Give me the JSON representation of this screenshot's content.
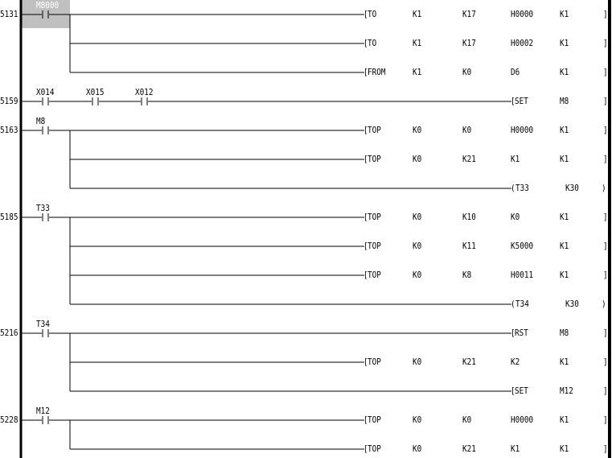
{
  "colors": {
    "line": "#000000",
    "highlight": "#c0c0c0",
    "highlight_text": "#ffffff"
  },
  "rungs": [
    {
      "step": "5131",
      "row": 0,
      "contacts": [
        {
          "label": "M8000",
          "selected": true
        }
      ],
      "outputs": [
        {
          "row": 0,
          "type": "apply",
          "op": "TO",
          "args": [
            "K1",
            "K17",
            "H0000",
            "K1"
          ]
        },
        {
          "row": 1,
          "type": "apply",
          "op": "TO",
          "args": [
            "K1",
            "K17",
            "H0002",
            "K1"
          ]
        },
        {
          "row": 2,
          "type": "apply",
          "op": "FROM",
          "args": [
            "K1",
            "K0",
            "D6",
            "K1"
          ]
        }
      ]
    },
    {
      "step": "5159",
      "row": 3,
      "contacts": [
        {
          "label": "X014"
        },
        {
          "label": "X015"
        },
        {
          "label": "X012"
        }
      ],
      "outputs": [
        {
          "row": 3,
          "type": "set",
          "op": "SET",
          "args": [
            "M8"
          ]
        }
      ]
    },
    {
      "step": "5163",
      "row": 4,
      "contacts": [
        {
          "label": "M8"
        }
      ],
      "outputs": [
        {
          "row": 4,
          "type": "apply",
          "op": "TOP",
          "args": [
            "K0",
            "K0",
            "H0000",
            "K1"
          ]
        },
        {
          "row": 5,
          "type": "apply",
          "op": "TOP",
          "args": [
            "K0",
            "K21",
            "K1",
            "K1"
          ]
        },
        {
          "row": 6,
          "type": "coil",
          "op": "T33",
          "args": [
            "K30"
          ]
        }
      ]
    },
    {
      "step": "5185",
      "row": 7,
      "contacts": [
        {
          "label": "T33"
        }
      ],
      "outputs": [
        {
          "row": 7,
          "type": "apply",
          "op": "TOP",
          "args": [
            "K0",
            "K10",
            "K0",
            "K1"
          ]
        },
        {
          "row": 8,
          "type": "apply",
          "op": "TOP",
          "args": [
            "K0",
            "K11",
            "K5000",
            "K1"
          ]
        },
        {
          "row": 9,
          "type": "apply",
          "op": "TOP",
          "args": [
            "K0",
            "K8",
            "H0011",
            "K1"
          ]
        },
        {
          "row": 10,
          "type": "coil",
          "op": "T34",
          "args": [
            "K30"
          ]
        }
      ]
    },
    {
      "step": "5216",
      "row": 11,
      "contacts": [
        {
          "label": "T34"
        }
      ],
      "outputs": [
        {
          "row": 11,
          "type": "set",
          "op": "RST",
          "args": [
            "M8"
          ]
        },
        {
          "row": 12,
          "type": "apply",
          "op": "TOP",
          "args": [
            "K0",
            "K21",
            "K2",
            "K1"
          ]
        },
        {
          "row": 13,
          "type": "set",
          "op": "SET",
          "args": [
            "M12"
          ]
        }
      ]
    },
    {
      "step": "5228",
      "row": 14,
      "contacts": [
        {
          "label": "M12"
        }
      ],
      "outputs": [
        {
          "row": 14,
          "type": "apply",
          "op": "TOP",
          "args": [
            "K0",
            "K0",
            "H0000",
            "K1"
          ]
        },
        {
          "row": 15,
          "type": "apply",
          "op": "TOP",
          "args": [
            "K0",
            "K21",
            "K1",
            "K1"
          ]
        }
      ]
    }
  ]
}
